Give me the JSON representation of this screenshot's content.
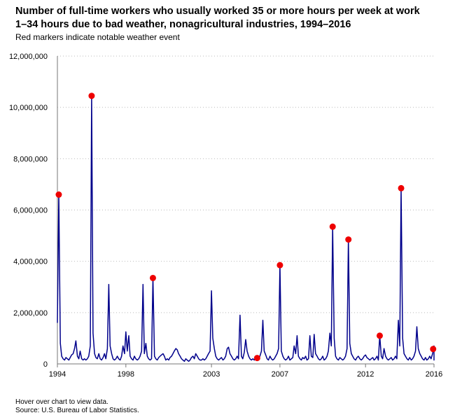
{
  "header": {
    "title_line1": "Number of full-time workers who usually worked 35 or more hours per week at work",
    "title_line2": "1–34 hours due to bad weather, nonagricultural industries, 1994–2016",
    "subtitle": "Red markers indicate notable weather event"
  },
  "footer": {
    "hint": "Hover over chart to view data.",
    "source": "Source: U.S. Bureau of Labor Statistics."
  },
  "colors": {
    "line": "#00008b",
    "marker": "#ee0000",
    "grid": "#bbbbbb",
    "axis": "#777777"
  },
  "chart_data": {
    "type": "line",
    "title": "Number of full-time workers who usually worked 35 or more hours per week at work 1–34 hours due to bad weather, nonagricultural industries, 1994–2016",
    "xlabel": "",
    "ylabel": "",
    "xlim": [
      1994,
      2016
    ],
    "ylim": [
      0,
      12000000
    ],
    "x_ticks": [
      1994,
      1998,
      2003,
      2007,
      2012,
      2016
    ],
    "y_ticks": [
      0,
      2000000,
      4000000,
      6000000,
      8000000,
      10000000,
      12000000
    ],
    "y_tick_labels": [
      "0",
      "2,000,000",
      "4,000,000",
      "6,000,000",
      "8,000,000",
      "10,000,000",
      "12,000,000"
    ],
    "grid": {
      "y": true,
      "x": false,
      "style": "dotted"
    },
    "series": [
      {
        "points": [
          [
            1994.0,
            1600000
          ],
          [
            1994.08,
            6600000
          ],
          [
            1994.17,
            800000
          ],
          [
            1994.25,
            300000
          ],
          [
            1994.33,
            200000
          ],
          [
            1994.42,
            150000
          ],
          [
            1994.5,
            250000
          ],
          [
            1994.58,
            200000
          ],
          [
            1994.67,
            150000
          ],
          [
            1994.75,
            250000
          ],
          [
            1994.83,
            350000
          ],
          [
            1994.92,
            400000
          ],
          [
            1995.0,
            600000
          ],
          [
            1995.08,
            900000
          ],
          [
            1995.17,
            300000
          ],
          [
            1995.25,
            200000
          ],
          [
            1995.33,
            500000
          ],
          [
            1995.42,
            200000
          ],
          [
            1995.5,
            150000
          ],
          [
            1995.58,
            200000
          ],
          [
            1995.67,
            150000
          ],
          [
            1995.75,
            200000
          ],
          [
            1995.83,
            300000
          ],
          [
            1995.92,
            700000
          ],
          [
            1996.0,
            10450000
          ],
          [
            1996.08,
            1200000
          ],
          [
            1996.17,
            400000
          ],
          [
            1996.25,
            250000
          ],
          [
            1996.33,
            200000
          ],
          [
            1996.42,
            400000
          ],
          [
            1996.5,
            200000
          ],
          [
            1996.58,
            150000
          ],
          [
            1996.67,
            250000
          ],
          [
            1996.75,
            400000
          ],
          [
            1996.83,
            200000
          ],
          [
            1996.92,
            600000
          ],
          [
            1997.0,
            3100000
          ],
          [
            1997.08,
            700000
          ],
          [
            1997.17,
            400000
          ],
          [
            1997.25,
            200000
          ],
          [
            1997.33,
            150000
          ],
          [
            1997.42,
            200000
          ],
          [
            1997.5,
            300000
          ],
          [
            1997.58,
            200000
          ],
          [
            1997.67,
            150000
          ],
          [
            1997.75,
            300000
          ],
          [
            1997.83,
            700000
          ],
          [
            1997.92,
            400000
          ],
          [
            1998.0,
            1250000
          ],
          [
            1998.08,
            500000
          ],
          [
            1998.17,
            1100000
          ],
          [
            1998.25,
            300000
          ],
          [
            1998.33,
            200000
          ],
          [
            1998.42,
            150000
          ],
          [
            1998.5,
            300000
          ],
          [
            1998.58,
            200000
          ],
          [
            1998.67,
            150000
          ],
          [
            1998.75,
            200000
          ],
          [
            1998.83,
            300000
          ],
          [
            1998.92,
            500000
          ],
          [
            1999.0,
            3100000
          ],
          [
            1999.08,
            400000
          ],
          [
            1999.17,
            800000
          ],
          [
            1999.25,
            300000
          ],
          [
            1999.33,
            200000
          ],
          [
            1999.42,
            150000
          ],
          [
            1999.5,
            200000
          ],
          [
            1999.58,
            3350000
          ],
          [
            1999.67,
            300000
          ],
          [
            1999.75,
            200000
          ],
          [
            1999.83,
            150000
          ],
          [
            1999.92,
            250000
          ],
          [
            2000.0,
            300000
          ],
          [
            2000.08,
            350000
          ],
          [
            2000.17,
            400000
          ],
          [
            2000.25,
            300000
          ],
          [
            2000.33,
            150000
          ],
          [
            2000.42,
            200000
          ],
          [
            2000.5,
            150000
          ],
          [
            2000.58,
            250000
          ],
          [
            2000.67,
            300000
          ],
          [
            2000.75,
            400000
          ],
          [
            2000.83,
            500000
          ],
          [
            2000.92,
            600000
          ],
          [
            2001.0,
            550000
          ],
          [
            2001.08,
            400000
          ],
          [
            2001.17,
            300000
          ],
          [
            2001.25,
            200000
          ],
          [
            2001.33,
            150000
          ],
          [
            2001.42,
            100000
          ],
          [
            2001.5,
            200000
          ],
          [
            2001.58,
            150000
          ],
          [
            2001.67,
            100000
          ],
          [
            2001.75,
            150000
          ],
          [
            2001.83,
            250000
          ],
          [
            2001.92,
            300000
          ],
          [
            2002.0,
            200000
          ],
          [
            2002.08,
            400000
          ],
          [
            2002.17,
            300000
          ],
          [
            2002.25,
            200000
          ],
          [
            2002.33,
            150000
          ],
          [
            2002.42,
            150000
          ],
          [
            2002.5,
            200000
          ],
          [
            2002.58,
            150000
          ],
          [
            2002.67,
            200000
          ],
          [
            2002.75,
            300000
          ],
          [
            2002.83,
            400000
          ],
          [
            2002.92,
            500000
          ],
          [
            2003.0,
            2850000
          ],
          [
            2003.08,
            1000000
          ],
          [
            2003.17,
            600000
          ],
          [
            2003.25,
            300000
          ],
          [
            2003.33,
            200000
          ],
          [
            2003.42,
            150000
          ],
          [
            2003.5,
            200000
          ],
          [
            2003.58,
            250000
          ],
          [
            2003.67,
            150000
          ],
          [
            2003.75,
            200000
          ],
          [
            2003.83,
            300000
          ],
          [
            2003.92,
            600000
          ],
          [
            2004.0,
            650000
          ],
          [
            2004.08,
            400000
          ],
          [
            2004.17,
            300000
          ],
          [
            2004.25,
            200000
          ],
          [
            2004.33,
            150000
          ],
          [
            2004.42,
            200000
          ],
          [
            2004.5,
            300000
          ],
          [
            2004.58,
            200000
          ],
          [
            2004.67,
            1900000
          ],
          [
            2004.75,
            300000
          ],
          [
            2004.83,
            200000
          ],
          [
            2004.92,
            450000
          ],
          [
            2005.0,
            950000
          ],
          [
            2005.08,
            500000
          ],
          [
            2005.17,
            300000
          ],
          [
            2005.25,
            200000
          ],
          [
            2005.33,
            150000
          ],
          [
            2005.42,
            200000
          ],
          [
            2005.5,
            150000
          ],
          [
            2005.58,
            250000
          ],
          [
            2005.67,
            230000
          ],
          [
            2005.75,
            200000
          ],
          [
            2005.83,
            300000
          ],
          [
            2005.92,
            500000
          ],
          [
            2006.0,
            1700000
          ],
          [
            2006.08,
            500000
          ],
          [
            2006.17,
            350000
          ],
          [
            2006.25,
            200000
          ],
          [
            2006.33,
            150000
          ],
          [
            2006.42,
            300000
          ],
          [
            2006.5,
            200000
          ],
          [
            2006.58,
            150000
          ],
          [
            2006.67,
            200000
          ],
          [
            2006.75,
            300000
          ],
          [
            2006.83,
            400000
          ],
          [
            2006.92,
            600000
          ],
          [
            2007.0,
            3850000
          ],
          [
            2007.08,
            500000
          ],
          [
            2007.17,
            300000
          ],
          [
            2007.25,
            200000
          ],
          [
            2007.33,
            150000
          ],
          [
            2007.42,
            200000
          ],
          [
            2007.5,
            300000
          ],
          [
            2007.58,
            150000
          ],
          [
            2007.67,
            200000
          ],
          [
            2007.75,
            250000
          ],
          [
            2007.83,
            700000
          ],
          [
            2007.92,
            400000
          ],
          [
            2008.0,
            1100000
          ],
          [
            2008.08,
            300000
          ],
          [
            2008.17,
            200000
          ],
          [
            2008.25,
            150000
          ],
          [
            2008.33,
            250000
          ],
          [
            2008.42,
            200000
          ],
          [
            2008.5,
            300000
          ],
          [
            2008.58,
            150000
          ],
          [
            2008.67,
            200000
          ],
          [
            2008.75,
            1100000
          ],
          [
            2008.83,
            300000
          ],
          [
            2008.92,
            250000
          ],
          [
            2009.0,
            1150000
          ],
          [
            2009.08,
            400000
          ],
          [
            2009.17,
            300000
          ],
          [
            2009.25,
            200000
          ],
          [
            2009.33,
            150000
          ],
          [
            2009.42,
            200000
          ],
          [
            2009.5,
            300000
          ],
          [
            2009.58,
            150000
          ],
          [
            2009.67,
            200000
          ],
          [
            2009.75,
            300000
          ],
          [
            2009.83,
            500000
          ],
          [
            2009.92,
            1200000
          ],
          [
            2010.0,
            700000
          ],
          [
            2010.08,
            5350000
          ],
          [
            2010.17,
            1000000
          ],
          [
            2010.25,
            300000
          ],
          [
            2010.33,
            200000
          ],
          [
            2010.42,
            150000
          ],
          [
            2010.5,
            250000
          ],
          [
            2010.58,
            200000
          ],
          [
            2010.67,
            150000
          ],
          [
            2010.75,
            200000
          ],
          [
            2010.83,
            300000
          ],
          [
            2010.92,
            600000
          ],
          [
            2011.0,
            4850000
          ],
          [
            2011.08,
            800000
          ],
          [
            2011.17,
            400000
          ],
          [
            2011.25,
            300000
          ],
          [
            2011.33,
            200000
          ],
          [
            2011.42,
            150000
          ],
          [
            2011.5,
            250000
          ],
          [
            2011.58,
            300000
          ],
          [
            2011.67,
            200000
          ],
          [
            2011.75,
            150000
          ],
          [
            2011.83,
            200000
          ],
          [
            2011.92,
            300000
          ],
          [
            2012.0,
            350000
          ],
          [
            2012.08,
            250000
          ],
          [
            2012.17,
            200000
          ],
          [
            2012.25,
            150000
          ],
          [
            2012.33,
            200000
          ],
          [
            2012.42,
            250000
          ],
          [
            2012.5,
            150000
          ],
          [
            2012.58,
            200000
          ],
          [
            2012.67,
            300000
          ],
          [
            2012.75,
            150000
          ],
          [
            2012.83,
            1100000
          ],
          [
            2012.92,
            300000
          ],
          [
            2013.0,
            200000
          ],
          [
            2013.08,
            600000
          ],
          [
            2013.17,
            300000
          ],
          [
            2013.25,
            200000
          ],
          [
            2013.33,
            150000
          ],
          [
            2013.42,
            200000
          ],
          [
            2013.5,
            250000
          ],
          [
            2013.58,
            150000
          ],
          [
            2013.67,
            200000
          ],
          [
            2013.75,
            300000
          ],
          [
            2013.83,
            200000
          ],
          [
            2013.92,
            1700000
          ],
          [
            2014.0,
            700000
          ],
          [
            2014.08,
            6850000
          ],
          [
            2014.17,
            1000000
          ],
          [
            2014.25,
            400000
          ],
          [
            2014.33,
            300000
          ],
          [
            2014.42,
            200000
          ],
          [
            2014.5,
            150000
          ],
          [
            2014.58,
            250000
          ],
          [
            2014.67,
            150000
          ],
          [
            2014.75,
            200000
          ],
          [
            2014.83,
            300000
          ],
          [
            2014.92,
            500000
          ],
          [
            2015.0,
            1450000
          ],
          [
            2015.08,
            600000
          ],
          [
            2015.17,
            400000
          ],
          [
            2015.25,
            300000
          ],
          [
            2015.33,
            200000
          ],
          [
            2015.42,
            150000
          ],
          [
            2015.5,
            250000
          ],
          [
            2015.58,
            150000
          ],
          [
            2015.67,
            200000
          ],
          [
            2015.75,
            300000
          ],
          [
            2015.83,
            200000
          ],
          [
            2015.92,
            400000
          ],
          [
            2016.0,
            700000
          ],
          [
            2016.08,
            300000
          ],
          [
            2016.17,
            250000
          ],
          [
            2016.25,
            200000
          ],
          [
            2016.33,
            150000
          ],
          [
            2016.42,
            200000
          ],
          [
            2016.5,
            150000
          ],
          [
            2016.58,
            200000
          ],
          [
            2016.67,
            150000
          ],
          [
            2016.75,
            300000
          ],
          [
            2016.83,
            500000
          ],
          [
            2016.92,
            580000
          ],
          [
            2017.0,
            200000
          ]
        ]
      }
    ],
    "markers": [
      [
        1994.08,
        6600000
      ],
      [
        1996.0,
        10450000
      ],
      [
        1999.58,
        3350000
      ],
      [
        2005.67,
        230000
      ],
      [
        2007.0,
        3850000
      ],
      [
        2010.08,
        5350000
      ],
      [
        2011.0,
        4850000
      ],
      [
        2012.83,
        1100000
      ],
      [
        2014.08,
        6850000
      ],
      [
        2016.92,
        580000
      ]
    ]
  }
}
